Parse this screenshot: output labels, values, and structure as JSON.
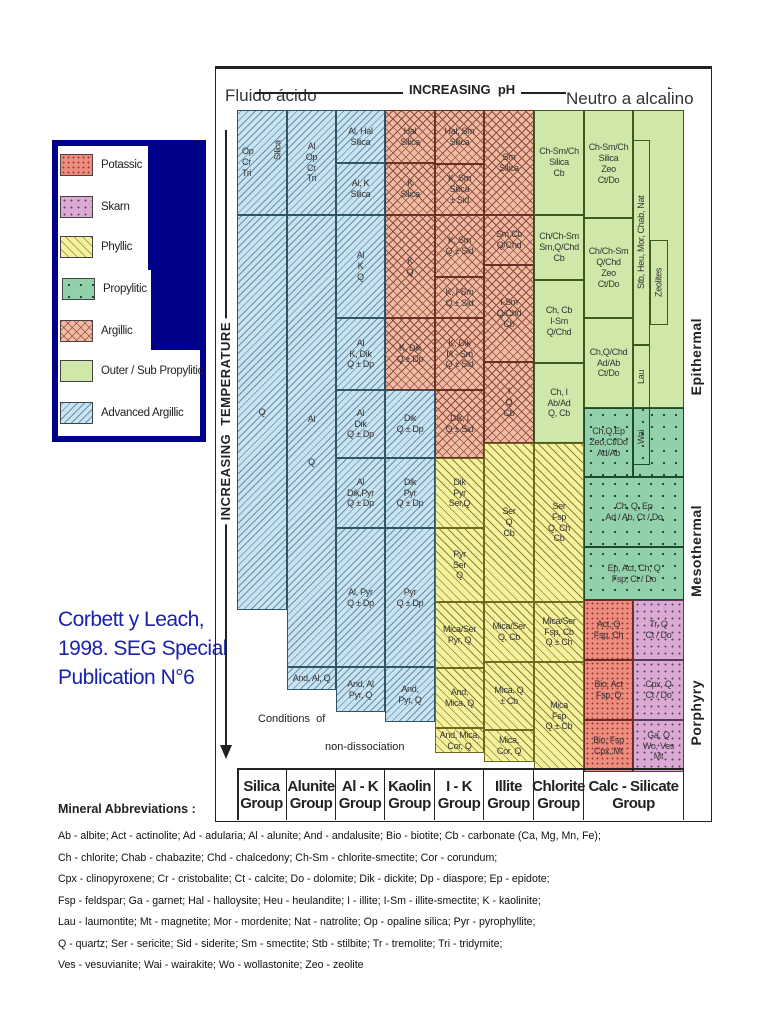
{
  "header": {
    "left_label": "Fluido ácido",
    "center_label": "INCREASING  pH",
    "right_label": "Neutro a alcalino",
    "y_axis_label": "INCREASING  TEMPERATURE"
  },
  "legend": {
    "items": [
      {
        "label": "Potassic",
        "zone": "pot",
        "color": "#ef8c80"
      },
      {
        "label": "Skarn",
        "zone": "skarn",
        "color": "#dbaad3"
      },
      {
        "label": "Phyllic",
        "zone": "phy",
        "color": "#f6f29c"
      },
      {
        "label": "Propylitic",
        "zone": "prop",
        "color": "#92d0aa"
      },
      {
        "label": "Argillic",
        "zone": "arg",
        "color": "#f3b9a2"
      },
      {
        "label": "Outer / Sub Propylitic",
        "zone": "outer",
        "color": "#cfe8a9"
      },
      {
        "label": "Advanced Argillic",
        "zone": "aa",
        "color": "#c8e4f2"
      }
    ],
    "border_color": "#00008a"
  },
  "citation": "Corbett y Leach,\n1998. SEG Special\nPublication N°6",
  "citation_color": "#1a22a8",
  "zones_right": [
    "Epithermal",
    "Mesothermal",
    "Porphyry"
  ],
  "non_dissociation": [
    "Conditions  of",
    "non-dissociation"
  ],
  "groups": [
    "Silica\nGroup",
    "Alunite\nGroup",
    "Al - K\nGroup",
    "Kaolin\nGroup",
    "I - K\nGroup",
    "Illite\nGroup",
    "Chlorite\nGroup",
    "Calc - Silicate\nGroup"
  ],
  "cells": [
    {
      "text": "Op\nCr\nTri",
      "zone": "aa"
    },
    {
      "text": "Silica",
      "zone": "aa"
    },
    {
      "text": "Q",
      "zone": "aa"
    },
    {
      "text": "Al\nOp\nCr\nTri",
      "zone": "aa"
    },
    {
      "text": "Al\n\n\n\nQ",
      "zone": "aa"
    },
    {
      "text": "And, Al, Q",
      "zone": "aa"
    },
    {
      "text": "Al, Hal\nSilica",
      "zone": "aa"
    },
    {
      "text": "Al, K\nSilica",
      "zone": "aa"
    },
    {
      "text": "Al\nK\nQ",
      "zone": "aa"
    },
    {
      "text": "Al\nK, Dik\nQ ± Dp",
      "zone": "aa"
    },
    {
      "text": "Al\nDik\nQ ± Dp",
      "zone": "aa"
    },
    {
      "text": "Al\nDik,Pyr\nQ ± Dp",
      "zone": "aa"
    },
    {
      "text": "Al, Pyr\nQ ± Dp",
      "zone": "aa"
    },
    {
      "text": "And, Al\nPyr, Q",
      "zone": "aa"
    },
    {
      "text": "Hal\nSilica",
      "zone": "arg"
    },
    {
      "text": "K\nSilica",
      "zone": "arg"
    },
    {
      "text": "K\nQ",
      "zone": "arg"
    },
    {
      "text": "K, Dik\nQ ± Dp",
      "zone": "arg"
    },
    {
      "text": "Dik\nQ ± Dp",
      "zone": "aa"
    },
    {
      "text": "Dik\nPyr\nQ ± Dp",
      "zone": "aa"
    },
    {
      "text": "Pyr\nQ ± Dp",
      "zone": "aa"
    },
    {
      "text": "And,\nPyr, Q",
      "zone": "aa"
    },
    {
      "text": "Hal, Sm\nSilica",
      "zone": "arg"
    },
    {
      "text": "K, Sm\nSilica\n± Sid",
      "zone": "arg"
    },
    {
      "text": "K, Sm\nQ ± Sid",
      "zone": "arg"
    },
    {
      "text": "K, I-Sm\nQ ± Sid",
      "zone": "arg"
    },
    {
      "text": "K, Dik\nI/I - Sm\nQ ± Sid",
      "zone": "arg"
    },
    {
      "text": "Dik, I\nQ ± Sid",
      "zone": "arg"
    },
    {
      "text": "Dik\nPyr\nSer,Q",
      "zone": "phy"
    },
    {
      "text": "Pyr\nSer\nQ",
      "zone": "phy"
    },
    {
      "text": "Mica/Ser\nPyr, Q",
      "zone": "phy"
    },
    {
      "text": "And,\nMica, Q",
      "zone": "phy"
    },
    {
      "text": "And, Mica,\nCor, Q",
      "zone": "phy"
    },
    {
      "text": "Sm\nSilica",
      "zone": "arg"
    },
    {
      "text": "Sm,Cb\nQ/Chd",
      "zone": "arg"
    },
    {
      "text": "I-Sm\nQ/Chd\nCb",
      "zone": "arg"
    },
    {
      "text": "I\nQ\nCb",
      "zone": "arg"
    },
    {
      "text": "Ser\nQ\nCb",
      "zone": "phy"
    },
    {
      "text": "Mica/Ser\nQ, Cb",
      "zone": "phy"
    },
    {
      "text": "Mica, Q\n± Cb",
      "zone": "phy"
    },
    {
      "text": "Mica,\nCor, Q",
      "zone": "phy"
    },
    {
      "text": "Ch-Sm/Ch\nSilica\nCb",
      "zone": "outer"
    },
    {
      "text": "Ch/Ch-Sm\nSm,Q/Chd\nCb",
      "zone": "outer"
    },
    {
      "text": "Ch, Cb\nI-Sm\nQ/Chd",
      "zone": "outer"
    },
    {
      "text": "Ch, I\nAb/Ad\nQ, Cb",
      "zone": "outer"
    },
    {
      "text": "Ser\nFsp\nQ, Ch\nCb",
      "zone": "phy"
    },
    {
      "text": "Mica/Ser\nFsp, Cb\nQ ± Ch",
      "zone": "phy"
    },
    {
      "text": "Mica\nFsp\nQ ± Cb",
      "zone": "phy"
    },
    {
      "text": "Ch-Sm/Ch\nSilica\nZeo\nCt/Do",
      "zone": "outer"
    },
    {
      "text": "Ch/Ch-Sm\nQ/Chd\nZeo\nCt/Do",
      "zone": "outer"
    },
    {
      "text": "Ch,Q/Chd\nAd/Ab\nCt/Do",
      "zone": "outer"
    },
    {
      "text": "Stb, Heu, Mor, Chab, Nat",
      "zone": "outer"
    },
    {
      "text": "Zeolites",
      "zone": "outer"
    },
    {
      "text": "Lau",
      "zone": "outer"
    },
    {
      "text": "Ch,Q,Ep\nZeo,Ct/Do\nAd/Ab",
      "zone": "prop"
    },
    {
      "text": "Wai",
      "zone": "prop"
    },
    {
      "text": "Ch, Q, Ep\nAd / Ab, Ct / Do",
      "zone": "prop"
    },
    {
      "text": "Ep, Act, Ch, Q\nFsp, Ct / Do",
      "zone": "prop"
    },
    {
      "text": "Act, Q\nFsp, Ch",
      "zone": "pot"
    },
    {
      "text": "Bio, Act\nFsp, Q",
      "zone": "pot"
    },
    {
      "text": "Bio, Fsp\nCpx, Mt",
      "zone": "pot"
    },
    {
      "text": "Tr, Q\nCt / Do",
      "zone": "skarn"
    },
    {
      "text": "Cpx, Q\nCt / Do",
      "zone": "skarn"
    },
    {
      "text": "Ga, Q\nWo, Ves\nMt",
      "zone": "skarn"
    }
  ],
  "abbreviations": {
    "title": "Mineral Abbreviations :",
    "lines": [
      "Ab - albite; Act - actinolite; Ad - adularia; Al - alunite; And - andalusite; Bio - biotite; Cb - carbonate (Ca, Mg, Mn, Fe);",
      "Ch - chlorite; Chab - chabazite; Chd - chalcedony; Ch-Sm - chlorite-smectite; Cor - corundum;",
      "Cpx - clinopyroxene; Cr - cristobalite; Ct - calcite; Do - dolomite; Dik - dickite; Dp - diaspore; Ep - epidote;",
      "Fsp - feldspar; Ga - garnet; Hal - halloysite; Heu - heulandite; I - illite; I-Sm - illite-smectite; K - kaolinite;",
      "Lau - laumontite; Mt - magnetite; Mor - mordenite; Nat - natrolite; Op - opaline silica; Pyr - pyrophyllite;",
      "Q - quartz; Ser - sericite; Sid - siderite; Sm - smectite; Stb - stilbite; Tr - tremolite; Tri - tridymite;",
      "Ves - vesuvianite; Wai - wairakite; Wo - wollastonite; Zeo - zeolite"
    ]
  }
}
